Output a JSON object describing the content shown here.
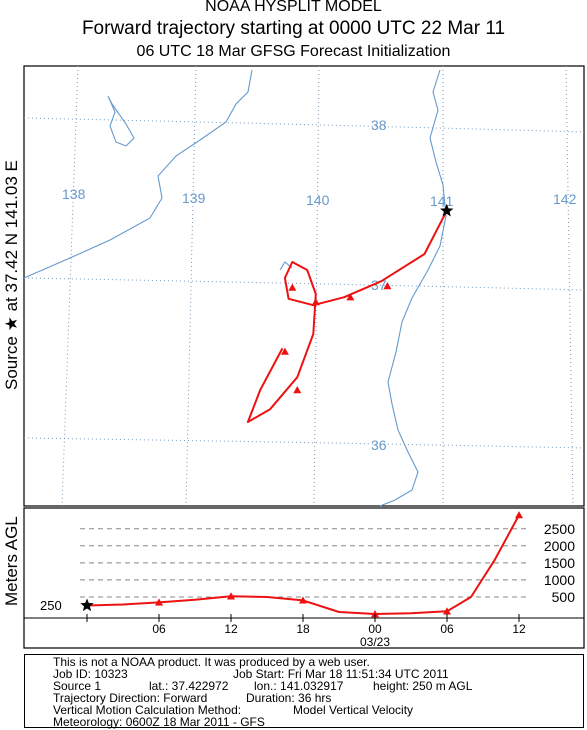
{
  "header": {
    "title": "NOAA HYSPLIT MODEL",
    "subtitle": "Forward trajectory starting at 0000 UTC 22 Mar 11",
    "run": "06 UTC 18 Mar    GFSG  Forecast Initialization"
  },
  "side_labels": {
    "source_prefix": "Source",
    "star": "★",
    "source_at": "at",
    "lat": "37.42 N",
    "lon": "141.03 E",
    "height_axis": "Meters AGL"
  },
  "colors": {
    "trajectory": "#ee1111",
    "map_lines": "#6699cc",
    "grid": "#7799bb",
    "frame": "#000000"
  },
  "chart_data": [
    {
      "type": "line",
      "title": "Forward trajectory starting at 0000 UTC 22 Mar 11",
      "map": {
        "lon_labels": [
          "138",
          "139",
          "140",
          "141",
          "142"
        ],
        "lat_labels": [
          "38",
          "37",
          "36"
        ],
        "lon_range": [
          137.7,
          142.2
        ],
        "lat_range": [
          35.52,
          38.38
        ]
      },
      "source": {
        "lon": 141.03,
        "lat": 37.42,
        "marker": "star"
      },
      "series": [
        {
          "values_lon_lat": [
            [
              141.03,
              37.42
            ],
            [
              140.85,
              37.15
            ],
            [
              140.5,
              36.98
            ],
            [
              140.2,
              36.88
            ],
            [
              139.95,
              36.83
            ],
            [
              139.75,
              36.87
            ],
            [
              139.72,
              37.0
            ],
            [
              139.78,
              37.1
            ],
            [
              139.9,
              37.05
            ],
            [
              139.97,
              36.9
            ],
            [
              139.95,
              36.65
            ],
            [
              139.82,
              36.38
            ],
            [
              139.6,
              36.18
            ],
            [
              139.42,
              36.1
            ],
            [
              139.52,
              36.3
            ],
            [
              139.7,
              36.56
            ]
          ],
          "hourly_markers_lon_lat": [
            [
              141.03,
              37.42
            ],
            [
              140.55,
              36.95
            ],
            [
              140.25,
              36.88
            ],
            [
              139.78,
              36.94
            ],
            [
              139.97,
              36.85
            ],
            [
              139.82,
              36.3
            ],
            [
              139.72,
              36.54
            ]
          ]
        }
      ]
    },
    {
      "type": "line",
      "ylabel": "Meters AGL",
      "x_tick_labels": [
        "06",
        "12",
        "18",
        "00",
        "06",
        "12"
      ],
      "x_date_label": "03/23",
      "x_hours": [
        0,
        6,
        12,
        18,
        24,
        30,
        36
      ],
      "y_tick_labels": [
        "2500",
        "2000",
        "1500",
        "1000",
        "500"
      ],
      "ylim": [
        0,
        3000
      ],
      "start_label": "250",
      "series": [
        {
          "hours": [
            0,
            3,
            6,
            9,
            12,
            15,
            18,
            21,
            24,
            27,
            30,
            32,
            34,
            36
          ],
          "values": [
            250,
            280,
            340,
            420,
            520,
            500,
            400,
            60,
            0,
            20,
            80,
            500,
            1600,
            2900
          ]
        }
      ]
    }
  ],
  "info": {
    "line1": "This is not a NOAA product. It was produced by a web user.",
    "line2a": "Job ID: 10323",
    "line2b": "Job Start: Fri Mar 18 11:51:34 UTC 2011",
    "line3a": "Source 1",
    "line3b": "lat.: 37.422972",
    "line3c": "lon.: 141.032917",
    "line3d": "height: 250 m AGL",
    "line4a": "Trajectory Direction: Forward",
    "line4b": "Duration: 36 hrs",
    "line5a": "Vertical Motion Calculation Method:",
    "line5b": "Model Vertical Velocity",
    "line6": "Meteorology: 0600Z 18 Mar 2011 - GFS"
  }
}
